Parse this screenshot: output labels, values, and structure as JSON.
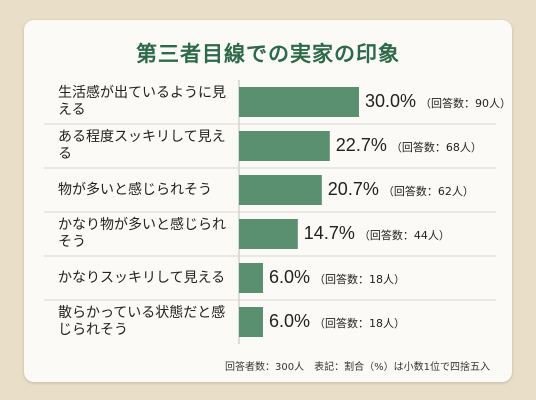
{
  "title": "第三者目線での実家の印象",
  "note": "回答者数：300人　表記：割合（%）は小数1位で四捨五入",
  "colors": {
    "bar": "#5a8f70",
    "title": "#2e6a4a",
    "divider": "#d6d6d6"
  },
  "chart_data": {
    "type": "bar",
    "orientation": "horizontal",
    "title": "第三者目線での実家の印象",
    "unit": "%",
    "categories": [
      "生活感が出ているように見える",
      "ある程度スッキリして見える",
      "物が多いと感じられそう",
      "かなり物が多いと感じられそう",
      "かなりスッキリして見える",
      "散らかっている状態だと感じられそう"
    ],
    "values": [
      30.0,
      22.7,
      20.7,
      14.7,
      6.0,
      6.0
    ],
    "value_labels": [
      "30.0%",
      "22.7%",
      "20.7%",
      "14.7%",
      "6.0%",
      "6.0%"
    ],
    "count_labels": [
      "（回答数：90人）",
      "（回答数：68人）",
      "（回答数：62人）",
      "（回答数：44人）",
      "（回答数：18人）",
      "（回答数：18人）"
    ],
    "grid": false,
    "legend": "none"
  }
}
